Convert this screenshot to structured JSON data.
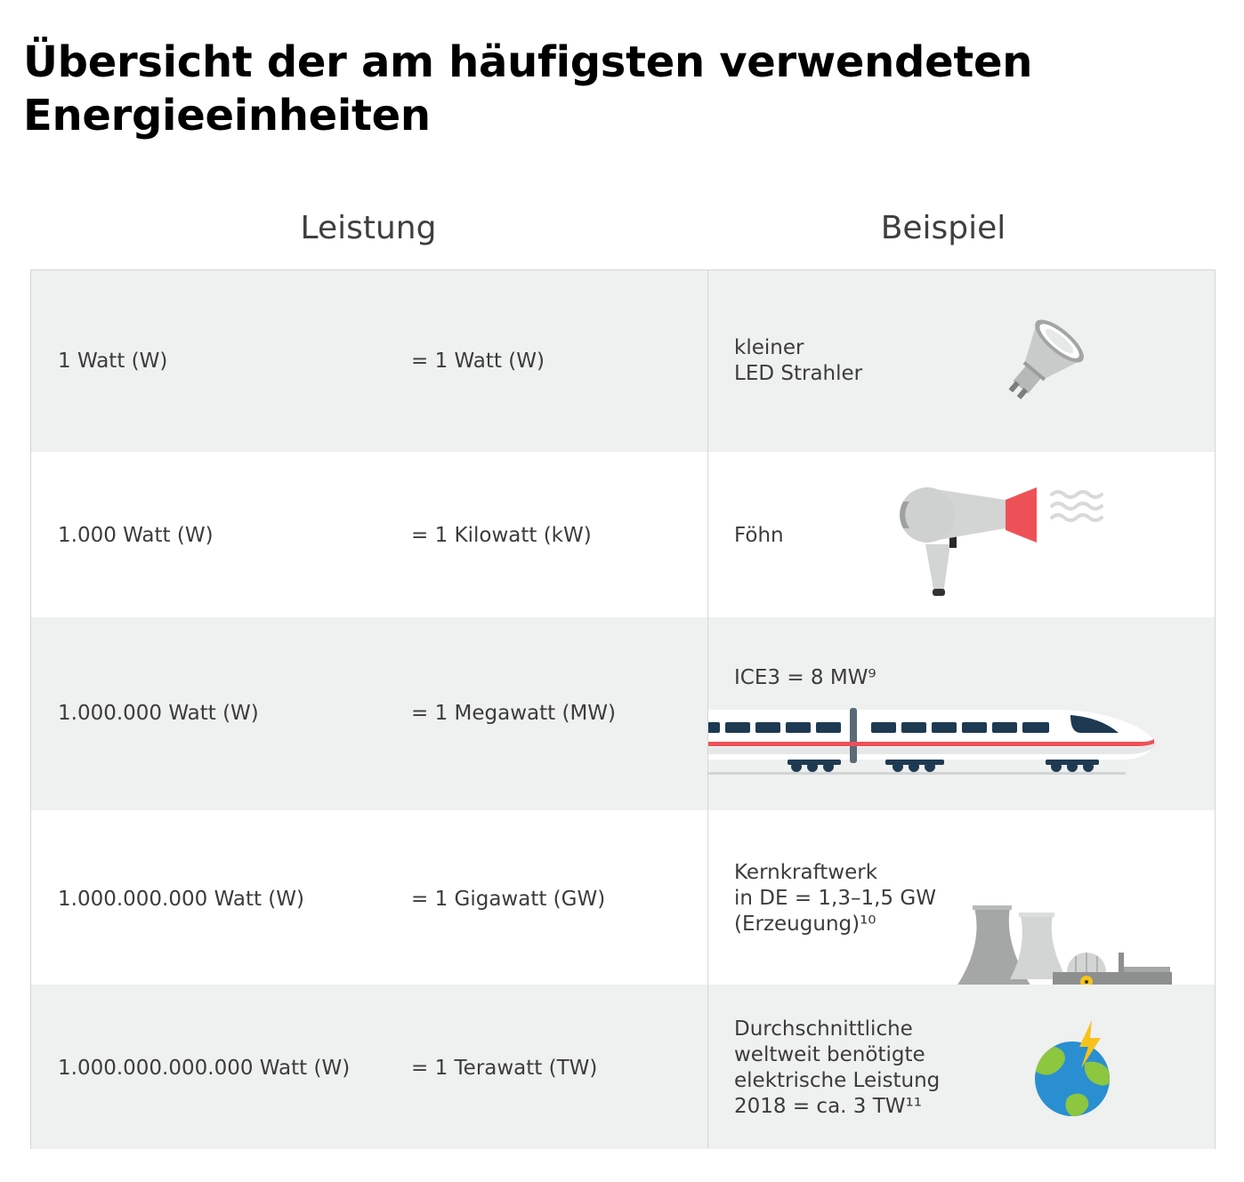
{
  "title": "Übersicht der am häufigsten verwendeten Energieeinheiten",
  "headers": {
    "leistung": "Leistung",
    "beispiel": "Beispiel"
  },
  "rows": [
    {
      "watt": "1 Watt (W)",
      "unit": "= 1 Watt (W)",
      "example": [
        "kleiner",
        "LED Strahler"
      ],
      "icon": "led-spotlight-icon"
    },
    {
      "watt": "1.000 Watt (W)",
      "unit": "= 1 Kilowatt (kW)",
      "example": [
        "Föhn"
      ],
      "icon": "hair-dryer-icon"
    },
    {
      "watt": "1.000.000 Watt (W)",
      "unit": "= 1 Megawatt (MW)",
      "example": [
        "ICE3 = 8 MW⁹"
      ],
      "icon": "high-speed-train-icon"
    },
    {
      "watt": "1.000.000.000 Watt (W)",
      "unit": "= 1 Gigawatt (GW)",
      "example": [
        "Kernkraftwerk",
        "in DE = 1,3–1,5 GW",
        "(Erzeugung)¹⁰"
      ],
      "icon": "nuclear-power-plant-icon"
    },
    {
      "watt": "1.000.000.000.000 Watt (W)",
      "unit": "= 1 Terawatt (TW)",
      "example": [
        "Durchschnittliche",
        "weltweit benötigte",
        "elektrische Leistung",
        "2018 = ca. 3 TW¹¹"
      ],
      "icon": "globe-lightning-icon"
    }
  ],
  "colors": {
    "row_shade": "#eff0f0",
    "accent_red": "#ee5057",
    "train_navy": "#1e3a52",
    "globe_blue": "#2a8fd0",
    "globe_green": "#8dc63f",
    "bolt_yellow": "#f7c31b"
  }
}
